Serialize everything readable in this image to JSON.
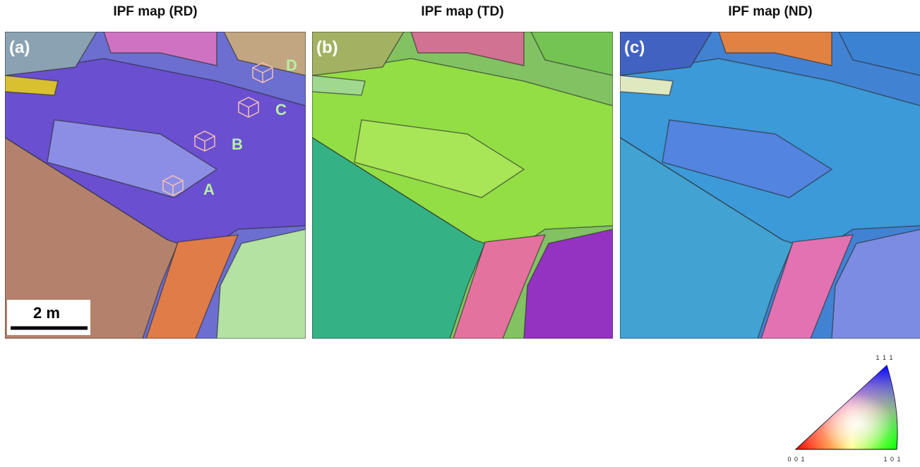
{
  "panels": [
    {
      "title": "IPF map (RD)",
      "label": "(a)"
    },
    {
      "title": "IPF map (TD)",
      "label": "(b)"
    },
    {
      "title": "IPF map (ND)",
      "label": "(c)"
    }
  ],
  "grain_labels": [
    "A",
    "B",
    "C",
    "D"
  ],
  "scale_bar": "2 m",
  "legend": {
    "top": "1 1 1",
    "bottom_left": "0 0 1",
    "bottom_right": "1 0 1"
  }
}
